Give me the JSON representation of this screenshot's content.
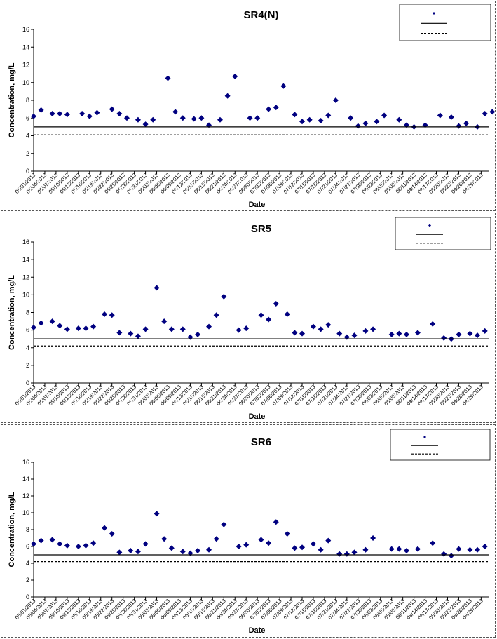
{
  "chart_data": [
    {
      "type": "scatter",
      "title": "SR4(N)",
      "xlabel": "Date",
      "ylabel": "Concentration, mg/L",
      "ylim": [
        0,
        16
      ],
      "yticks": [
        0,
        2,
        4,
        6,
        8,
        10,
        12,
        14,
        16
      ],
      "xlim": [
        "05/01/2013",
        "08/31/2013"
      ],
      "xtick_labels": [
        "05/01/2013",
        "05/04/2013",
        "05/07/2013",
        "05/10/2013",
        "05/13/2013",
        "05/16/2013",
        "05/19/2013",
        "05/22/2013",
        "05/25/2013",
        "05/28/2013",
        "05/31/2013",
        "06/03/2013",
        "06/06/2013",
        "06/09/2013",
        "06/12/2013",
        "06/15/2013",
        "06/18/2013",
        "06/21/2013",
        "06/24/2013",
        "06/27/2013",
        "06/30/2013",
        "07/03/2013",
        "07/06/2013",
        "07/09/2013",
        "07/12/2013",
        "07/15/2013",
        "07/18/2013",
        "07/21/2013",
        "07/24/2013",
        "07/27/2013",
        "07/30/2013",
        "08/02/2013",
        "08/05/2013",
        "08/08/2013",
        "08/11/2013",
        "08/14/2013",
        "08/17/2013",
        "08/20/2013",
        "08/23/2013",
        "08/26/2013",
        "08/29/2013"
      ],
      "legend_position": "top-right",
      "grid": false,
      "series": [
        {
          "marker": "diamond",
          "color": "#000080",
          "points": [
            [
              "05/01/2013",
              6.2
            ],
            [
              "05/03/2013",
              6.9
            ],
            [
              "05/06/2013",
              6.5
            ],
            [
              "05/08/2013",
              6.5
            ],
            [
              "05/10/2013",
              6.4
            ],
            [
              "05/14/2013",
              6.5
            ],
            [
              "05/16/2013",
              6.2
            ],
            [
              "05/18/2013",
              6.6
            ],
            [
              "05/22/2013",
              7.0
            ],
            [
              "05/24/2013",
              6.5
            ],
            [
              "05/26/2013",
              6.0
            ],
            [
              "05/29/2013",
              5.8
            ],
            [
              "05/31/2013",
              5.3
            ],
            [
              "06/02/2013",
              5.8
            ],
            [
              "06/06/2013",
              10.5
            ],
            [
              "06/08/2013",
              6.7
            ],
            [
              "06/10/2013",
              6.0
            ],
            [
              "06/13/2013",
              5.9
            ],
            [
              "06/15/2013",
              6.0
            ],
            [
              "06/17/2013",
              5.2
            ],
            [
              "06/20/2013",
              5.8
            ],
            [
              "06/22/2013",
              8.5
            ],
            [
              "06/24/2013",
              10.7
            ],
            [
              "06/28/2013",
              6.0
            ],
            [
              "06/30/2013",
              6.0
            ],
            [
              "07/03/2013",
              7.0
            ],
            [
              "07/05/2013",
              7.2
            ],
            [
              "07/07/2013",
              9.6
            ],
            [
              "07/10/2013",
              6.4
            ],
            [
              "07/12/2013",
              5.6
            ],
            [
              "07/14/2013",
              5.8
            ],
            [
              "07/17/2013",
              5.7
            ],
            [
              "07/19/2013",
              6.3
            ],
            [
              "07/21/2013",
              8.0
            ],
            [
              "07/25/2013",
              6.0
            ],
            [
              "07/27/2013",
              5.1
            ],
            [
              "07/29/2013",
              5.4
            ],
            [
              "08/01/2013",
              5.6
            ],
            [
              "08/03/2013",
              6.3
            ],
            [
              "08/07/2013",
              5.8
            ],
            [
              "08/09/2013",
              5.2
            ],
            [
              "08/11/2013",
              5.0
            ],
            [
              "08/14/2013",
              5.2
            ],
            [
              "08/18/2013",
              6.3
            ],
            [
              "08/21/2013",
              6.1
            ],
            [
              "08/23/2013",
              5.1
            ],
            [
              "08/25/2013",
              5.4
            ],
            [
              "08/28/2013",
              5.0
            ],
            [
              "08/30/2013",
              6.5
            ],
            [
              "09/01/2013",
              6.7
            ]
          ]
        },
        {
          "line": "solid",
          "color": "#000000",
          "constant": 5.0
        },
        {
          "line": "dashed",
          "color": "#000000",
          "constant": 4.1
        }
      ]
    },
    {
      "type": "scatter",
      "title": "SR5",
      "xlabel": "Date",
      "ylabel": "Concentration, mg/L",
      "ylim": [
        0,
        16
      ],
      "yticks": [
        0,
        2,
        4,
        6,
        8,
        10,
        12,
        14,
        16
      ],
      "xlim": [
        "05/01/2013",
        "08/31/2013"
      ],
      "xtick_labels": [
        "05/01/2013",
        "05/04/2013",
        "05/07/2013",
        "05/10/2013",
        "05/13/2013",
        "05/16/2013",
        "05/19/2013",
        "05/22/2013",
        "05/25/2013",
        "05/28/2013",
        "05/31/2013",
        "06/03/2013",
        "06/06/2013",
        "06/09/2013",
        "06/12/2013",
        "06/15/2013",
        "06/18/2013",
        "06/21/2013",
        "06/24/2013",
        "06/27/2013",
        "06/30/2013",
        "07/03/2013",
        "07/06/2013",
        "07/09/2013",
        "07/12/2013",
        "07/15/2013",
        "07/18/2013",
        "07/21/2013",
        "07/24/2013",
        "07/27/2013",
        "07/30/2013",
        "08/02/2013",
        "08/05/2013",
        "08/08/2013",
        "08/11/2013",
        "08/14/2013",
        "08/17/2013",
        "08/20/2013",
        "08/23/2013",
        "08/26/2013",
        "08/29/2013"
      ],
      "legend_position": "top-right",
      "grid": false,
      "series": [
        {
          "marker": "diamond",
          "color": "#000080",
          "points": [
            [
              "05/01/2013",
              6.3
            ],
            [
              "05/03/2013",
              6.8
            ],
            [
              "05/06/2013",
              7.0
            ],
            [
              "05/08/2013",
              6.5
            ],
            [
              "05/10/2013",
              6.1
            ],
            [
              "05/13/2013",
              6.2
            ],
            [
              "05/15/2013",
              6.2
            ],
            [
              "05/17/2013",
              6.4
            ],
            [
              "05/20/2013",
              7.8
            ],
            [
              "05/22/2013",
              7.7
            ],
            [
              "05/24/2013",
              5.7
            ],
            [
              "05/27/2013",
              5.6
            ],
            [
              "05/29/2013",
              5.3
            ],
            [
              "05/31/2013",
              6.1
            ],
            [
              "06/03/2013",
              10.8
            ],
            [
              "06/05/2013",
              7.0
            ],
            [
              "06/07/2013",
              6.1
            ],
            [
              "06/10/2013",
              6.1
            ],
            [
              "06/12/2013",
              5.2
            ],
            [
              "06/14/2013",
              5.5
            ],
            [
              "06/17/2013",
              6.4
            ],
            [
              "06/19/2013",
              7.7
            ],
            [
              "06/21/2013",
              9.8
            ],
            [
              "06/25/2013",
              6.0
            ],
            [
              "06/27/2013",
              6.2
            ],
            [
              "07/01/2013",
              7.7
            ],
            [
              "07/03/2013",
              7.2
            ],
            [
              "07/05/2013",
              9.0
            ],
            [
              "07/08/2013",
              7.8
            ],
            [
              "07/10/2013",
              5.7
            ],
            [
              "07/12/2013",
              5.6
            ],
            [
              "07/15/2013",
              6.4
            ],
            [
              "07/17/2013",
              6.1
            ],
            [
              "07/19/2013",
              6.6
            ],
            [
              "07/22/2013",
              5.6
            ],
            [
              "07/24/2013",
              5.2
            ],
            [
              "07/26/2013",
              5.4
            ],
            [
              "07/29/2013",
              5.9
            ],
            [
              "07/31/2013",
              6.1
            ],
            [
              "08/05/2013",
              5.5
            ],
            [
              "08/07/2013",
              5.6
            ],
            [
              "08/09/2013",
              5.5
            ],
            [
              "08/12/2013",
              5.7
            ],
            [
              "08/16/2013",
              6.7
            ],
            [
              "08/19/2013",
              5.1
            ],
            [
              "08/21/2013",
              5.0
            ],
            [
              "08/23/2013",
              5.5
            ],
            [
              "08/26/2013",
              5.6
            ],
            [
              "08/28/2013",
              5.4
            ],
            [
              "08/30/2013",
              5.9
            ]
          ]
        },
        {
          "line": "solid",
          "color": "#000000",
          "constant": 5.0
        },
        {
          "line": "dashed",
          "color": "#000000",
          "constant": 4.2
        }
      ]
    },
    {
      "type": "scatter",
      "title": "SR6",
      "xlabel": "Date",
      "ylabel": "Concentration, mg/L",
      "ylim": [
        0,
        16
      ],
      "yticks": [
        0,
        2,
        4,
        6,
        8,
        10,
        12,
        14,
        16
      ],
      "xlim": [
        "05/01/2013",
        "08/31/2013"
      ],
      "xtick_labels": [
        "05/01/2013",
        "05/04/2013",
        "05/07/2013",
        "05/10/2013",
        "05/13/2013",
        "05/16/2013",
        "05/19/2013",
        "05/22/2013",
        "05/25/2013",
        "05/28/2013",
        "05/31/2013",
        "06/03/2013",
        "06/06/2013",
        "06/09/2013",
        "06/12/2013",
        "06/15/2013",
        "06/18/2013",
        "06/21/2013",
        "06/24/2013",
        "06/27/2013",
        "06/30/2013",
        "07/03/2013",
        "07/06/2013",
        "07/09/2013",
        "07/12/2013",
        "07/15/2013",
        "07/18/2013",
        "07/21/2013",
        "07/24/2013",
        "07/27/2013",
        "07/30/2013",
        "08/02/2013",
        "08/05/2013",
        "08/08/2013",
        "08/11/2013",
        "08/14/2013",
        "08/17/2013",
        "08/20/2013",
        "08/23/2013",
        "08/26/2013",
        "08/29/2013"
      ],
      "legend_position": "top-right",
      "grid": false,
      "series": [
        {
          "marker": "diamond",
          "color": "#000080",
          "points": [
            [
              "05/01/2013",
              6.3
            ],
            [
              "05/03/2013",
              6.7
            ],
            [
              "05/06/2013",
              6.8
            ],
            [
              "05/08/2013",
              6.3
            ],
            [
              "05/10/2013",
              6.1
            ],
            [
              "05/13/2013",
              6.0
            ],
            [
              "05/15/2013",
              6.1
            ],
            [
              "05/17/2013",
              6.4
            ],
            [
              "05/20/2013",
              8.2
            ],
            [
              "05/22/2013",
              7.5
            ],
            [
              "05/24/2013",
              5.3
            ],
            [
              "05/27/2013",
              5.5
            ],
            [
              "05/29/2013",
              5.4
            ],
            [
              "05/31/2013",
              6.3
            ],
            [
              "06/03/2013",
              9.9
            ],
            [
              "06/05/2013",
              6.9
            ],
            [
              "06/07/2013",
              5.8
            ],
            [
              "06/10/2013",
              5.4
            ],
            [
              "06/12/2013",
              5.2
            ],
            [
              "06/14/2013",
              5.5
            ],
            [
              "06/17/2013",
              5.6
            ],
            [
              "06/19/2013",
              6.9
            ],
            [
              "06/21/2013",
              8.6
            ],
            [
              "06/25/2013",
              6.0
            ],
            [
              "06/27/2013",
              6.2
            ],
            [
              "07/01/2013",
              6.8
            ],
            [
              "07/03/2013",
              6.4
            ],
            [
              "07/05/2013",
              8.9
            ],
            [
              "07/08/2013",
              7.5
            ],
            [
              "07/10/2013",
              5.8
            ],
            [
              "07/12/2013",
              5.9
            ],
            [
              "07/15/2013",
              6.3
            ],
            [
              "07/17/2013",
              5.6
            ],
            [
              "07/19/2013",
              6.7
            ],
            [
              "07/22/2013",
              5.1
            ],
            [
              "07/24/2013",
              5.1
            ],
            [
              "07/26/2013",
              5.3
            ],
            [
              "07/29/2013",
              5.6
            ],
            [
              "07/31/2013",
              7.0
            ],
            [
              "08/05/2013",
              5.7
            ],
            [
              "08/07/2013",
              5.7
            ],
            [
              "08/09/2013",
              5.5
            ],
            [
              "08/12/2013",
              5.7
            ],
            [
              "08/16/2013",
              6.4
            ],
            [
              "08/19/2013",
              5.1
            ],
            [
              "08/21/2013",
              4.9
            ],
            [
              "08/23/2013",
              5.7
            ],
            [
              "08/26/2013",
              5.6
            ],
            [
              "08/28/2013",
              5.6
            ],
            [
              "08/30/2013",
              6.0
            ]
          ]
        },
        {
          "line": "solid",
          "color": "#000000",
          "constant": 5.0
        },
        {
          "line": "dashed",
          "color": "#000000",
          "constant": 4.2
        }
      ]
    }
  ]
}
